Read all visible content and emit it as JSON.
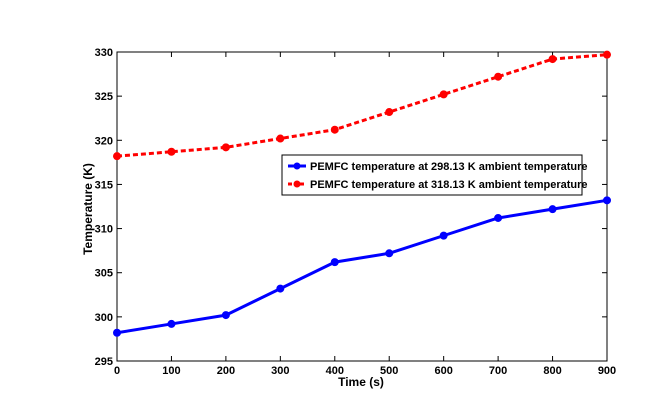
{
  "chart_data": {
    "type": "line",
    "xlabel": "Time (s)",
    "ylabel": "Temperature (K)",
    "xlim": [
      0,
      900
    ],
    "ylim": [
      295,
      330
    ],
    "xticks": [
      0,
      100,
      200,
      300,
      400,
      500,
      600,
      700,
      800,
      900
    ],
    "yticks": [
      295,
      300,
      305,
      310,
      315,
      320,
      325,
      330
    ],
    "grid": false,
    "legend_position": "center-right",
    "x": [
      0,
      100,
      200,
      300,
      400,
      500,
      600,
      700,
      800,
      900
    ],
    "series": [
      {
        "name": "PEMFC temperature at 298.13 K ambient temperature",
        "color": "#0000ff",
        "line_style": "solid",
        "values": [
          298.2,
          299.2,
          300.2,
          303.2,
          306.2,
          307.2,
          309.2,
          311.2,
          312.2,
          313.2
        ]
      },
      {
        "name": "PEMFC temperature at 318.13 K ambient temperature",
        "color": "#ff0000",
        "line_style": "dashed",
        "values": [
          318.2,
          318.7,
          319.2,
          320.2,
          321.2,
          323.2,
          325.2,
          327.2,
          329.2,
          329.7
        ]
      }
    ]
  }
}
